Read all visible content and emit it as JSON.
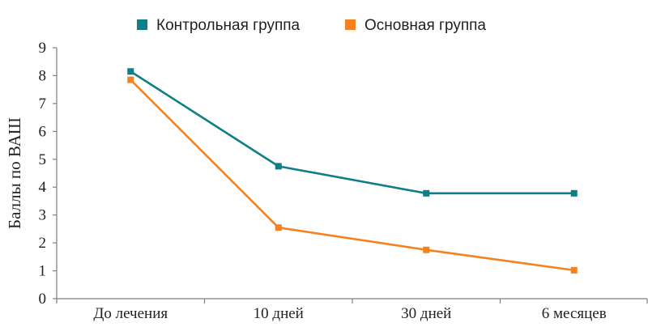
{
  "chart_data": {
    "type": "line",
    "title": "",
    "xlabel": "",
    "ylabel": "Баллы по ВАШ",
    "ylim": [
      0,
      9
    ],
    "yticks": [
      0,
      1,
      2,
      3,
      4,
      5,
      6,
      7,
      8,
      9
    ],
    "grid": false,
    "legend_position": "top-center",
    "categories": [
      "До лечения",
      "10 дней",
      "30 дней",
      "6 месяцев"
    ],
    "series": [
      {
        "name": "Контрольная группа",
        "color": "#0f7f86",
        "values": [
          8.15,
          4.75,
          3.78,
          3.78
        ]
      },
      {
        "name": "Основная группа",
        "color": "#f58220",
        "values": [
          7.85,
          2.55,
          1.75,
          1.02
        ]
      }
    ]
  }
}
